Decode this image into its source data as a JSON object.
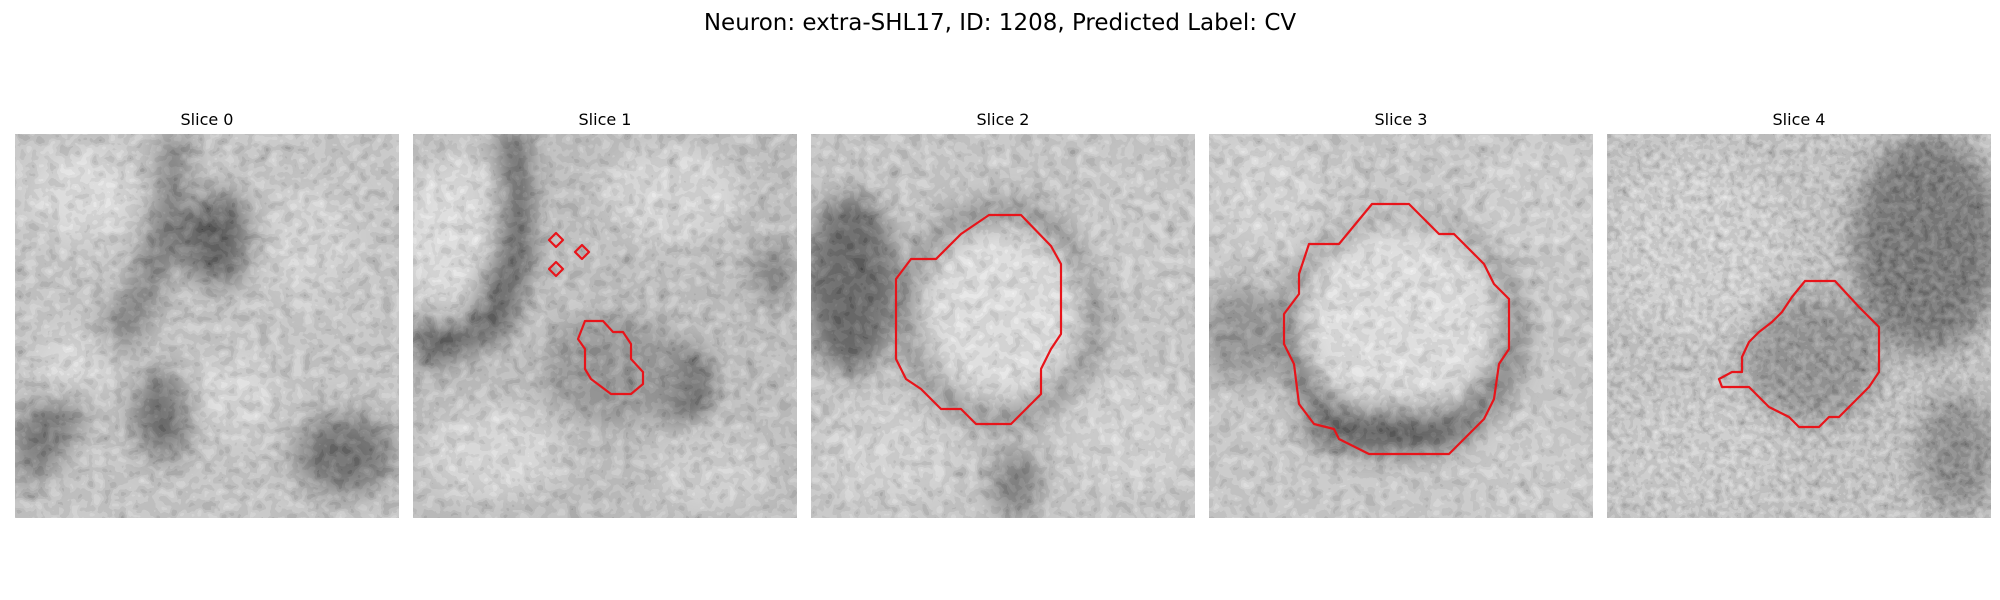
{
  "title": "Neuron: extra-SHL17, ID: 1208, Predicted Label: CV",
  "panels": [
    {
      "label": "Slice 0"
    },
    {
      "label": "Slice 1"
    },
    {
      "label": "Slice 2"
    },
    {
      "label": "Slice 3"
    },
    {
      "label": "Slice 4"
    }
  ],
  "colors": {
    "background": "#ffffff",
    "contour": "#e8141a"
  }
}
